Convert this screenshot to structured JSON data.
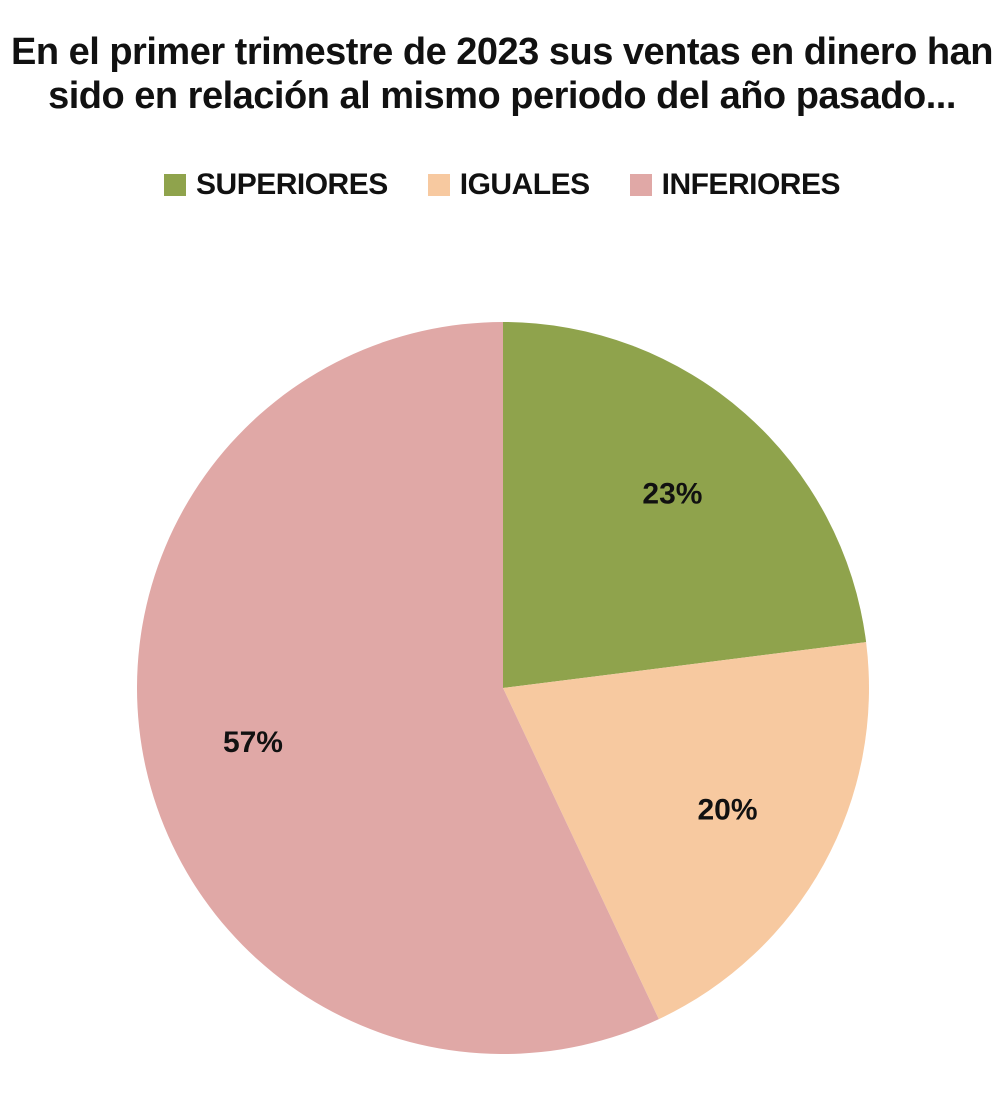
{
  "chart_data": {
    "type": "pie",
    "title_line1": "En el primer trimestre de 2023 sus ventas en dinero han",
    "title_line2": "sido en relación al mismo periodo del año pasado...",
    "legend_position": "top",
    "slices": [
      {
        "name": "SUPERIORES",
        "value": 23,
        "label": "23%",
        "color": "#8fa34c"
      },
      {
        "name": "IGUALES",
        "value": 20,
        "label": "20%",
        "color": "#f7c9a0"
      },
      {
        "name": "INFERIORES",
        "value": 57,
        "label": "57%",
        "color": "#e0a8a6"
      }
    ]
  }
}
